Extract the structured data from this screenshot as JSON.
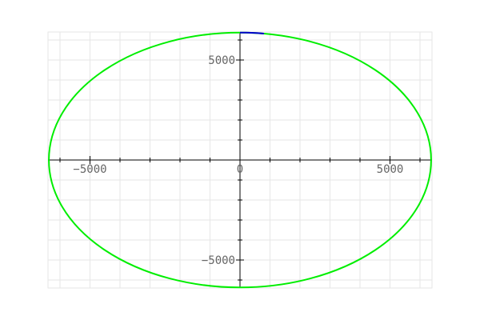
{
  "chart_data": {
    "type": "line",
    "title": "",
    "xlabel": "",
    "ylabel": "",
    "xlim": [
      -6400,
      6400
    ],
    "ylim": [
      -6400,
      6400
    ],
    "grid": true,
    "x_tick_labels": [
      {
        "value": -5000,
        "label": "−5000"
      },
      {
        "value": 0,
        "label": "0"
      },
      {
        "value": 5000,
        "label": "5000"
      }
    ],
    "y_tick_labels": [
      {
        "value": 5000,
        "label": "5000"
      },
      {
        "value": -5000,
        "label": "−5000"
      }
    ],
    "series": [
      {
        "color": "#00ee00",
        "shape": "ellipse",
        "center": [
          0,
          0
        ],
        "semi_axis_x": 6371,
        "semi_axis_y": 6371
      },
      {
        "color": "#0000cc",
        "x": [
          0,
          200,
          400,
          600,
          800
        ],
        "y": [
          6371,
          6370,
          6362,
          6345,
          6320
        ]
      }
    ]
  }
}
